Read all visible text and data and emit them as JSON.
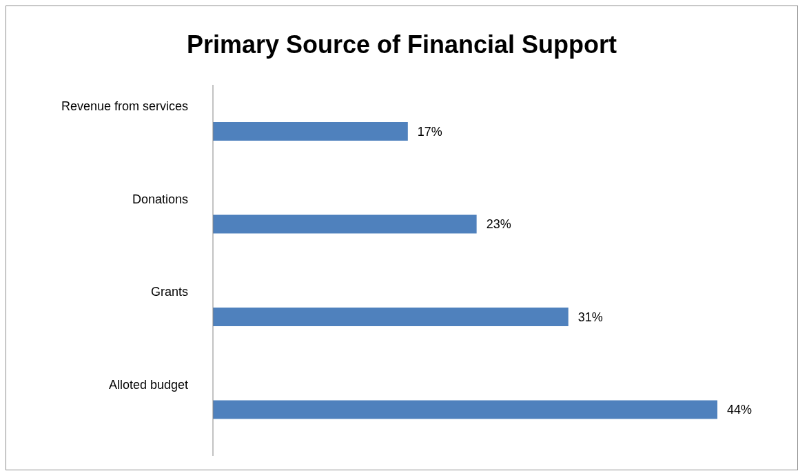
{
  "chart_data": {
    "type": "bar",
    "orientation": "horizontal",
    "title": "Primary Source of Financial Support",
    "categories": [
      "Revenue from services",
      "Donations",
      "Grants",
      "Alloted budget"
    ],
    "values": [
      17,
      23,
      31,
      44
    ],
    "value_labels": [
      "17%",
      "23%",
      "31%",
      "44%"
    ],
    "color": "#4f81bd"
  }
}
